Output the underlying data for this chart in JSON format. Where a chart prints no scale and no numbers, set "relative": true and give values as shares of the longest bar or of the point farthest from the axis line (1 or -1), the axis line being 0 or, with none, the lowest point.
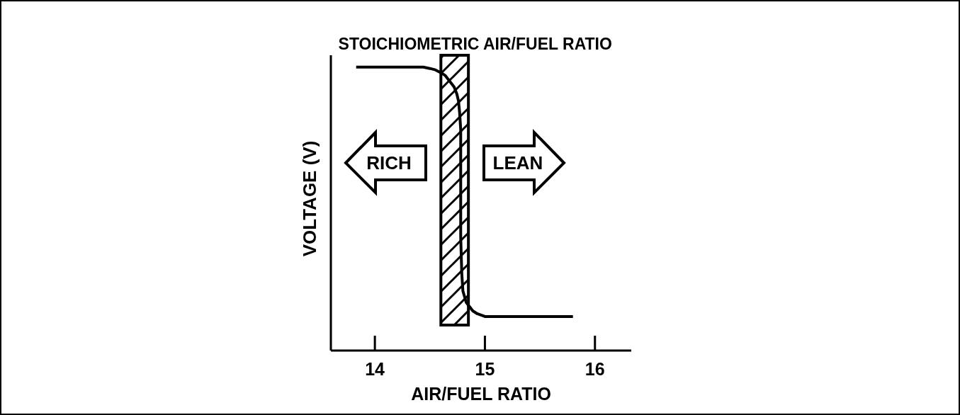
{
  "chart_data": {
    "type": "line",
    "xlabel": "AIR/FUEL RATIO",
    "ylabel": "VOLTAGE (V)",
    "x": [
      13.83,
      14.44,
      14.5,
      14.55,
      14.6,
      14.64,
      14.68,
      14.72,
      14.745,
      14.76,
      14.77,
      14.78,
      14.78,
      14.78,
      14.79,
      14.8,
      14.83,
      14.86,
      14.89,
      14.93,
      15.0,
      15.8
    ],
    "values": [
      1,
      1,
      0.995,
      0.99,
      0.98,
      0.97,
      0.95,
      0.93,
      0.905,
      0.88,
      0.84,
      0.78,
      0.6,
      0.4,
      0.27,
      0.21,
      0.17,
      0.155,
      0.14,
      0.13,
      0.12,
      0.12
    ],
    "color": "#000000",
    "line_style": "solid",
    "relative": true,
    "xlim": [
      13.6,
      16.33
    ],
    "xticks": [
      14,
      15,
      16
    ],
    "tick_labels": "x",
    "bands": [
      {
        "axis": "x",
        "from": 14.6,
        "to": 14.85,
        "label": "STOICHIOMETRIC AIR/FUEL RATIO",
        "color": "#000000"
      }
    ],
    "annotations": [
      "RICH",
      "LEAN"
    ]
  }
}
